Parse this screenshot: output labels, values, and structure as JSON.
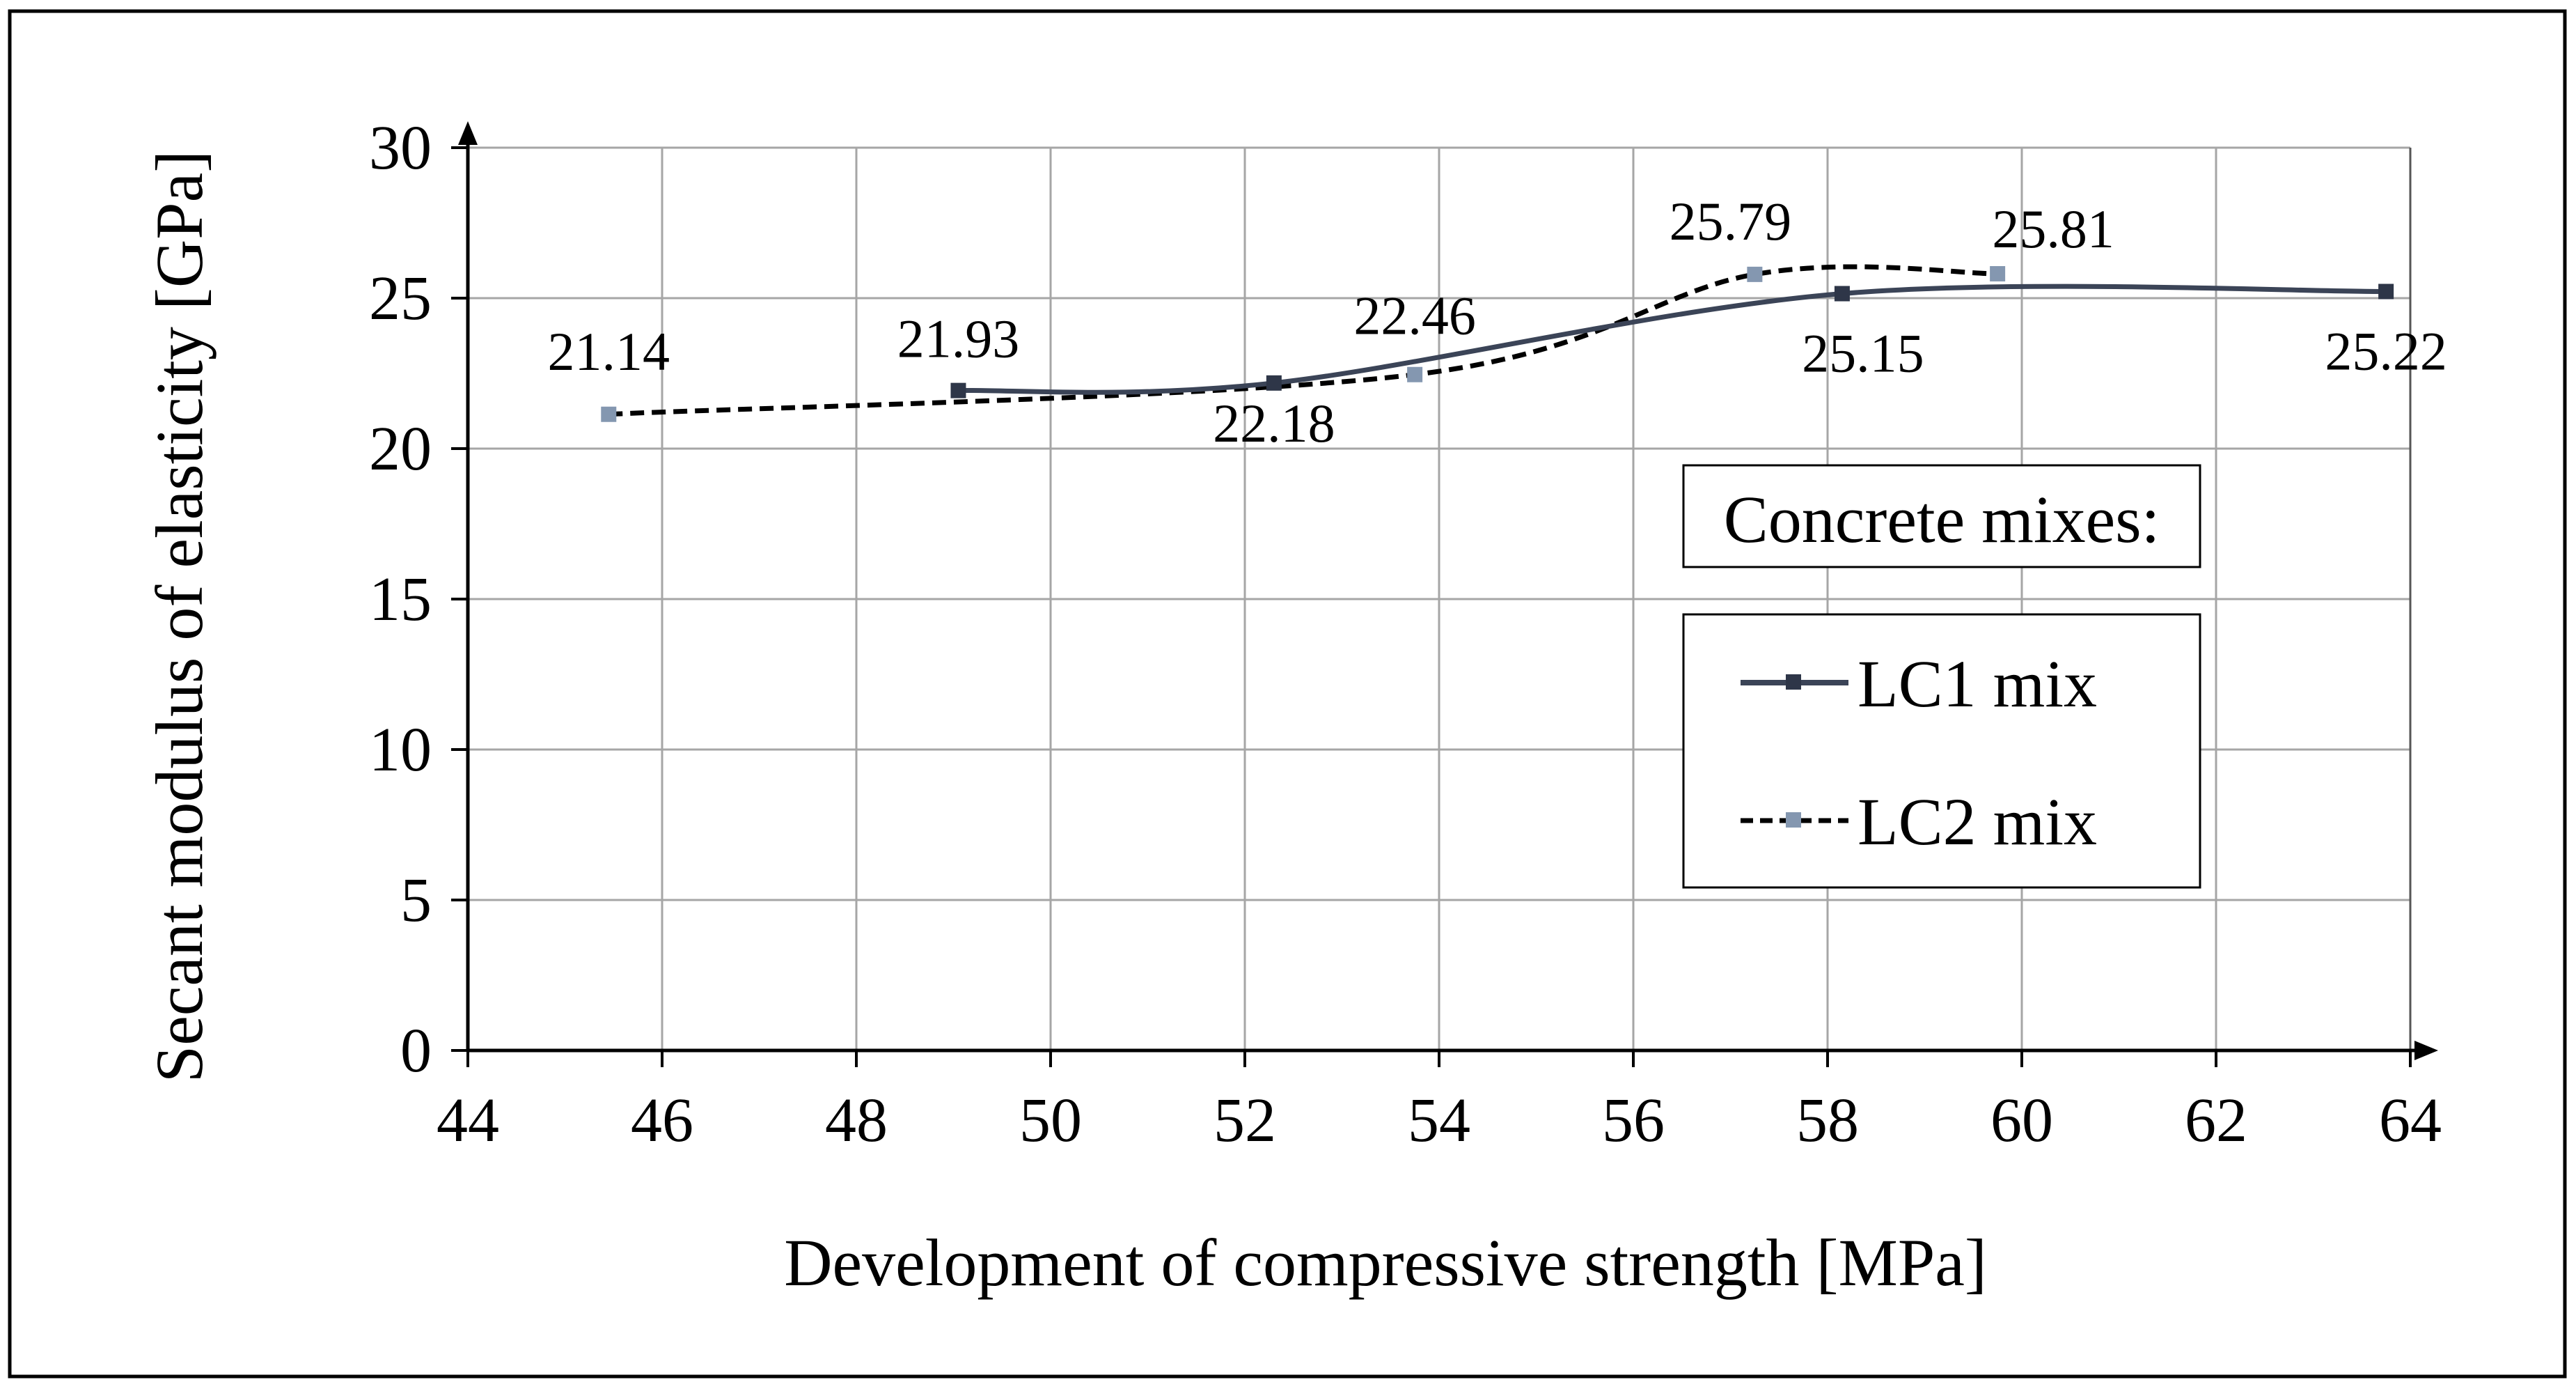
{
  "chart_data": {
    "type": "line",
    "title": "",
    "xlabel": "Development of compressive strength [MPa]",
    "ylabel": "Secant modulus of elasticity [GPa]",
    "xlim": [
      44,
      64
    ],
    "ylim": [
      0,
      30
    ],
    "xticks": [
      44,
      46,
      48,
      50,
      52,
      54,
      56,
      58,
      60,
      62,
      64
    ],
    "yticks": [
      0,
      5,
      10,
      15,
      20,
      25,
      30
    ],
    "grid": true,
    "legend_title": "Concrete mixes:",
    "legend_position": "right",
    "series": [
      {
        "name": "LC1 mix",
        "style": "solid",
        "color": "#3b4457",
        "marker_color": "#2e3648",
        "x": [
          49.05,
          52.3,
          58.15,
          63.75
        ],
        "y": [
          21.93,
          22.18,
          25.15,
          25.22
        ],
        "labels": [
          "21.93",
          "22.18",
          "25.15",
          "25.22"
        ]
      },
      {
        "name": "LC2 mix",
        "style": "dashed",
        "color": "#000000",
        "marker_color": "#8497b0",
        "x": [
          45.45,
          53.75,
          57.25,
          59.75
        ],
        "y": [
          21.14,
          22.46,
          25.79,
          25.81
        ],
        "labels": [
          "21.14",
          "22.46",
          "25.79",
          "25.81"
        ]
      }
    ]
  }
}
